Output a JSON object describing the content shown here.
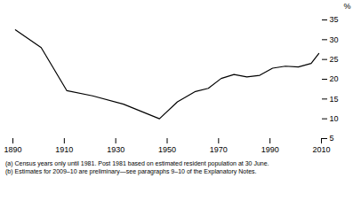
{
  "chart_data": {
    "type": "line",
    "ylabel": "%",
    "annotations": [
      "(a) Census years only until 1981. Post 1981 based on estimated resident population at 30 June.",
      "(b) Estimates for 2009–10 are preliminary—see paragraphs 9–10 of the Explanatory Notes."
    ],
    "x": [
      1891,
      1901,
      1911,
      1921,
      1933,
      1947,
      1954,
      1961,
      1966,
      1971,
      1976,
      1981,
      1986,
      1991,
      1996,
      2001,
      2006,
      2009
    ],
    "values": [
      32.5,
      28.0,
      17.1,
      15.8,
      13.7,
      10.0,
      14.3,
      16.9,
      17.7,
      20.2,
      21.2,
      20.6,
      21.0,
      22.8,
      23.3,
      23.1,
      24.0,
      26.5
    ],
    "color": "#000000",
    "xlim": [
      1890,
      2010
    ],
    "xticks": [
      1890,
      1910,
      1930,
      1950,
      1970,
      1990,
      2010
    ],
    "ylim": [
      5,
      35
    ],
    "yticks": [
      5,
      10,
      15,
      20,
      25,
      30,
      35
    ]
  }
}
